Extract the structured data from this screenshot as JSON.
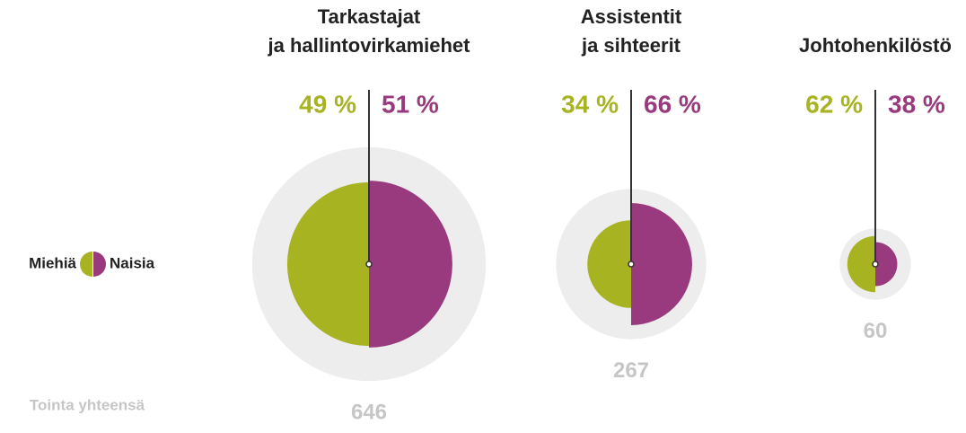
{
  "chart_data": {
    "type": "split-bubble",
    "categories": [
      [
        "Tarkastajat",
        "ja hallintovirkamiehet"
      ],
      [
        "Assistentit",
        "ja sihteerit"
      ],
      [
        "Johtohenkilöstö"
      ]
    ],
    "series": [
      {
        "name": "Miehiä",
        "color": "#a8b321",
        "values": [
          49,
          34,
          62
        ],
        "value_labels": [
          "49 %",
          "34 %",
          "62 %"
        ]
      },
      {
        "name": "Naisia",
        "color": "#993a7f",
        "values": [
          51,
          66,
          38
        ],
        "value_labels": [
          "51 %",
          "66 %",
          "38 %"
        ]
      }
    ],
    "totals_label": "Tointa yhteensä",
    "totals": [
      646,
      267,
      60
    ],
    "totals_color": "#c6c6c6",
    "outer_color": "#ededee"
  }
}
